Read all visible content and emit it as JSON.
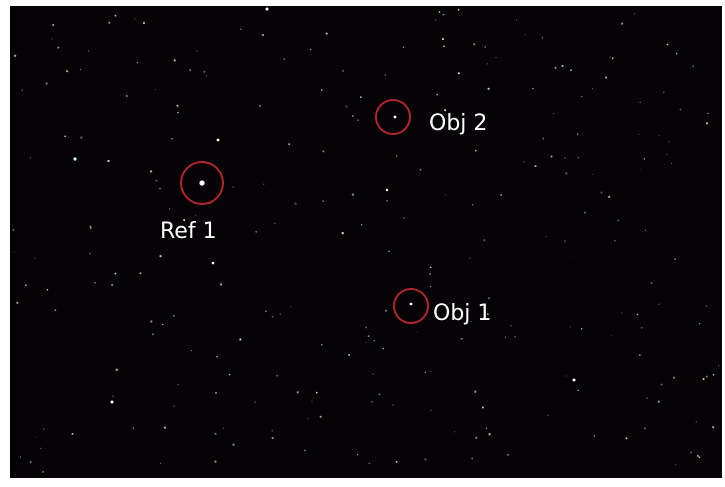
{
  "annotations": [
    {
      "label": "Obj 2"
    },
    {
      "label": "Ref 1"
    },
    {
      "label": "Obj 1"
    }
  ]
}
